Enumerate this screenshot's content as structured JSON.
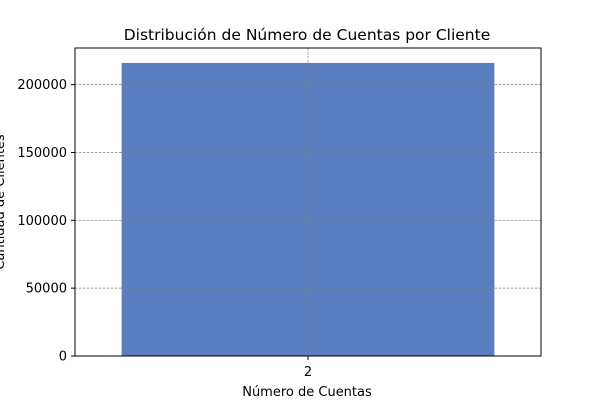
{
  "chart_data": {
    "type": "bar",
    "title": "Distribución de Número de Cuentas por Cliente",
    "xlabel": "Número de Cuentas",
    "ylabel": "Cantidad de Clientes",
    "categories": [
      "2"
    ],
    "values": [
      216000
    ],
    "ylim": [
      0,
      227000
    ],
    "yticks": [
      0,
      50000,
      100000,
      150000,
      200000
    ],
    "grid": true,
    "colors": {
      "bar": "#5b7ec0",
      "grid": "#808080",
      "axis": "#000000"
    }
  }
}
